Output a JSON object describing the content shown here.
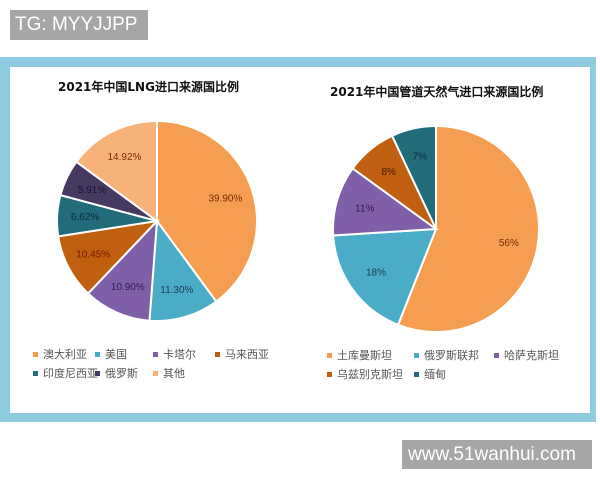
{
  "overlay": {
    "tag_text": "TG: MYYJJPP",
    "watermark_text": "www.51wanhui.com"
  },
  "frame": {
    "border_color": "#8fcbe0",
    "background": "#ffffff"
  },
  "charts": {
    "left": {
      "title": "2021年中国LNG进口来源国比例",
      "legend": [
        {
          "label": "澳大利亚",
          "color": "#f59d50"
        },
        {
          "label": "美国",
          "color": "#4aacc6"
        },
        {
          "label": "卡塔尔",
          "color": "#7f60a8"
        },
        {
          "label": "马来西亚",
          "color": "#c05f0f"
        },
        {
          "label": "印度尼西亚",
          "color": "#216b7a"
        },
        {
          "label": "俄罗斯",
          "color": "#463a63"
        },
        {
          "label": "其他",
          "color": "#f7b27a"
        }
      ]
    },
    "right": {
      "title": "2021年中国管道天然气进口来源国比例",
      "legend": [
        {
          "label": "土库曼斯坦",
          "color": "#f59d50"
        },
        {
          "label": "俄罗斯联邦",
          "color": "#4aacc6"
        },
        {
          "label": "哈萨克斯坦",
          "color": "#7f60a8"
        },
        {
          "label": "乌兹别克斯坦",
          "color": "#c05f0f"
        },
        {
          "label": "缅甸",
          "color": "#216b7a"
        }
      ]
    }
  },
  "chart_data": [
    {
      "type": "pie",
      "title": "2021年中国LNG进口来源国比例",
      "categories": [
        "澳大利亚",
        "美国",
        "卡塔尔",
        "马来西亚",
        "印度尼西亚",
        "俄罗斯",
        "其他"
      ],
      "values": [
        39.9,
        11.3,
        10.9,
        10.45,
        6.62,
        5.91,
        14.92
      ],
      "labels": [
        "39.90%",
        "11.30%",
        "10.90%",
        "10.45%",
        "6.62%",
        "5.91%",
        "14.92%"
      ],
      "colors": [
        "#f59d50",
        "#4aacc6",
        "#7f60a8",
        "#c05f0f",
        "#216b7a",
        "#463a63",
        "#f7b27a"
      ],
      "start_angle": "12 o'clock, clockwise",
      "legend_position": "bottom"
    },
    {
      "type": "pie",
      "title": "2021年中国管道天然气进口来源国比例",
      "categories": [
        "土库曼斯坦",
        "俄罗斯联邦",
        "哈萨克斯坦",
        "乌兹别克斯坦",
        "缅甸"
      ],
      "values": [
        56,
        18,
        11,
        8,
        7
      ],
      "labels": [
        "56%",
        "18%",
        "11%",
        "8%",
        "7%"
      ],
      "colors": [
        "#f59d50",
        "#4aacc6",
        "#7f60a8",
        "#c05f0f",
        "#216b7a"
      ],
      "start_angle": "12 o'clock, clockwise",
      "legend_position": "bottom"
    }
  ]
}
